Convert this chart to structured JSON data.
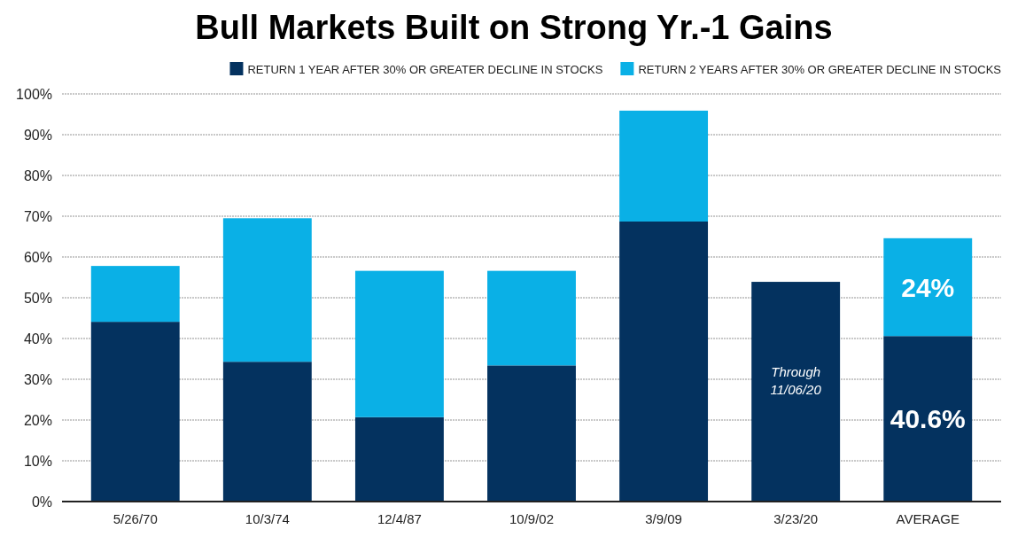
{
  "chart_data": {
    "type": "bar",
    "stacked": true,
    "title": "Bull Markets Built on Strong Yr.-1 Gains",
    "categories": [
      "5/26/70",
      "10/3/74",
      "12/4/87",
      "10/9/02",
      "3/9/09",
      "3/23/20",
      "AVERAGE"
    ],
    "series": [
      {
        "name": "RETURN 1 YEAR AFTER 30% OR GREATER DECLINE IN STOCKS",
        "color": "#04325f",
        "values": [
          44.1,
          34.3,
          20.7,
          33.4,
          68.7,
          53.9,
          40.6
        ],
        "value_labels": [
          null,
          null,
          null,
          null,
          null,
          null,
          "40.6%"
        ]
      },
      {
        "name": "RETURN 2 YEARS AFTER 30% OR GREATER DECLINE IN STOCKS",
        "color": "#0ab0e6",
        "values": [
          13.7,
          35.2,
          35.9,
          23.2,
          27.2,
          null,
          24
        ],
        "value_labels": [
          null,
          null,
          null,
          null,
          null,
          null,
          "24%"
        ]
      }
    ],
    "ylim": [
      0,
      100
    ],
    "yticks": [
      {
        "value": 0,
        "label": "0%"
      },
      {
        "value": 10,
        "label": "10%"
      },
      {
        "value": 20,
        "label": "20%"
      },
      {
        "value": 30,
        "label": "30%"
      },
      {
        "value": 40,
        "label": "40%"
      },
      {
        "value": 50,
        "label": "50%"
      },
      {
        "value": 60,
        "label": "60%"
      },
      {
        "value": 70,
        "label": "70%"
      },
      {
        "value": 80,
        "label": "80%"
      },
      {
        "value": 90,
        "label": "90%"
      },
      {
        "value": 100,
        "label": "100%"
      }
    ],
    "grid": "y",
    "legend": "top right",
    "annotations": [
      "Through 11/06/20"
    ]
  }
}
